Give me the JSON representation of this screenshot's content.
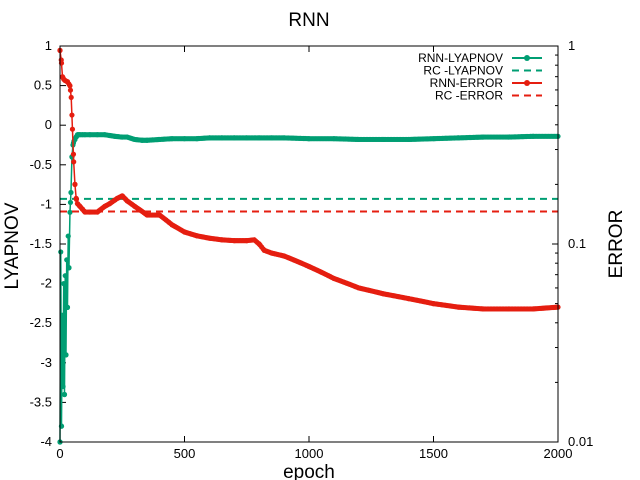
{
  "chart_data": {
    "type": "line",
    "title": "RNN",
    "xlabel": "epoch",
    "ylabel": "LYAPNOV",
    "y2label": "ERROR",
    "xlim": [
      0,
      2000
    ],
    "ylim": [
      -4,
      1
    ],
    "y2lim": [
      0.01,
      1
    ],
    "y2scale": "log",
    "xticks": [
      "0",
      "500",
      "1000",
      "1500",
      "2000"
    ],
    "yticks": [
      "-4",
      "-3.5",
      "-3",
      "-2.5",
      "-2",
      "-1.5",
      "-1",
      "-0.5",
      "0",
      "0.5",
      "1"
    ],
    "y2ticks": [
      "0.01",
      "0.1",
      "1"
    ],
    "grid": false,
    "legend_position": "top-right",
    "series": [
      {
        "name": "RNN-LYAPNOV",
        "axis": "y1",
        "style": "line-points",
        "color": "#009e73",
        "x": [
          0,
          3,
          6,
          9,
          12,
          15,
          18,
          21,
          24,
          27,
          30,
          33,
          36,
          40,
          44,
          48,
          52,
          56,
          60,
          65,
          70,
          75,
          80,
          90,
          100,
          120,
          150,
          180,
          200,
          220,
          250,
          270,
          300,
          330,
          350,
          400,
          450,
          500,
          550,
          600,
          650,
          700,
          750,
          800,
          850,
          900,
          1000,
          1100,
          1200,
          1300,
          1400,
          1500,
          1600,
          1700,
          1800,
          1900,
          2000
        ],
        "y": [
          -4.0,
          -1.6,
          -3.8,
          -2.4,
          -3.3,
          -2.0,
          -3.4,
          -1.9,
          -2.9,
          -1.7,
          -2.3,
          -1.4,
          -1.8,
          -1.1,
          -0.85,
          -0.4,
          -0.25,
          -0.2,
          -0.18,
          -0.15,
          -0.12,
          -0.12,
          -0.12,
          -0.12,
          -0.12,
          -0.12,
          -0.12,
          -0.12,
          -0.13,
          -0.14,
          -0.15,
          -0.15,
          -0.18,
          -0.19,
          -0.19,
          -0.18,
          -0.17,
          -0.17,
          -0.17,
          -0.16,
          -0.16,
          -0.16,
          -0.16,
          -0.16,
          -0.16,
          -0.16,
          -0.17,
          -0.17,
          -0.18,
          -0.18,
          -0.18,
          -0.17,
          -0.16,
          -0.15,
          -0.15,
          -0.14,
          -0.14
        ]
      },
      {
        "name": "RC -LYAPNOV",
        "axis": "y1",
        "style": "dashed",
        "color": "#009e73",
        "x": [
          0,
          2000
        ],
        "y": [
          -0.93,
          -0.93
        ]
      },
      {
        "name": "RNN-ERROR",
        "axis": "y2",
        "style": "line-points",
        "color": "#e51e10",
        "x": [
          0,
          5,
          10,
          15,
          20,
          30,
          40,
          45,
          50,
          55,
          60,
          65,
          70,
          80,
          90,
          100,
          120,
          150,
          180,
          200,
          230,
          250,
          270,
          300,
          350,
          400,
          450,
          500,
          550,
          600,
          650,
          700,
          750,
          780,
          800,
          820,
          850,
          900,
          1000,
          1100,
          1200,
          1300,
          1400,
          1500,
          1600,
          1700,
          1800,
          1900,
          2000
        ],
        "y": [
          0.95,
          0.85,
          0.7,
          0.68,
          0.67,
          0.66,
          0.63,
          0.55,
          0.38,
          0.26,
          0.2,
          0.17,
          0.16,
          0.155,
          0.15,
          0.145,
          0.145,
          0.145,
          0.155,
          0.16,
          0.17,
          0.175,
          0.165,
          0.155,
          0.14,
          0.14,
          0.125,
          0.115,
          0.11,
          0.107,
          0.105,
          0.104,
          0.104,
          0.105,
          0.1,
          0.093,
          0.09,
          0.087,
          0.077,
          0.067,
          0.06,
          0.056,
          0.053,
          0.05,
          0.048,
          0.047,
          0.047,
          0.047,
          0.048
        ]
      },
      {
        "name": "RC -ERROR",
        "axis": "y2",
        "style": "dashed",
        "color": "#e51e10",
        "x": [
          0,
          2000
        ],
        "y": [
          0.146,
          0.146
        ]
      }
    ]
  }
}
